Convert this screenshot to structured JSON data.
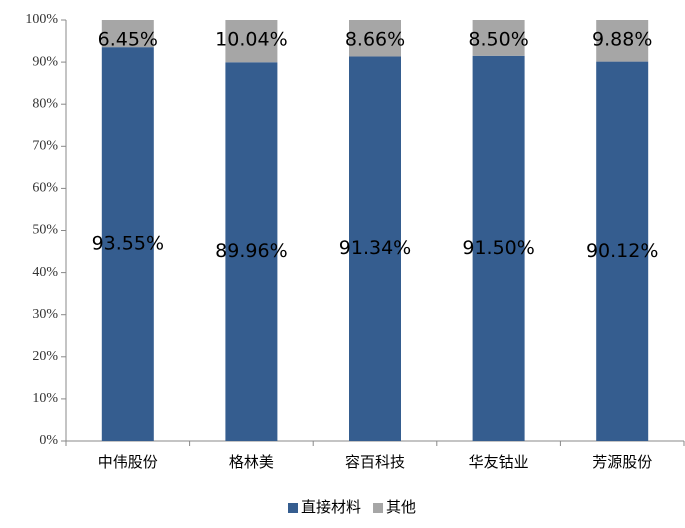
{
  "chart_data": {
    "type": "stacked_bar",
    "categories": [
      "中伟股份",
      "格林美",
      "容百科技",
      "华友钴业",
      "芳源股份"
    ],
    "series": [
      {
        "name": "直接材料",
        "color": "#355d8f",
        "values": [
          93.55,
          89.96,
          91.34,
          91.5,
          90.12
        ],
        "value_labels": [
          "93.55%",
          "89.96%",
          "91.34%",
          "91.50%",
          "90.12%"
        ]
      },
      {
        "name": "其他",
        "color": "#a6a6a6",
        "values": [
          6.45,
          10.04,
          8.66,
          8.5,
          9.88
        ],
        "value_labels": [
          "6.45%",
          "10.04%",
          "8.66%",
          "8.50%",
          "9.88%"
        ]
      }
    ],
    "ylim": [
      0,
      100
    ],
    "yticks": [
      {
        "value": 0,
        "label": "0%"
      },
      {
        "value": 10,
        "label": "10%"
      },
      {
        "value": 20,
        "label": "20%"
      },
      {
        "value": 30,
        "label": "30%"
      },
      {
        "value": 40,
        "label": "40%"
      },
      {
        "value": 50,
        "label": "50%"
      },
      {
        "value": 60,
        "label": "60%"
      },
      {
        "value": 70,
        "label": "70%"
      },
      {
        "value": 80,
        "label": "80%"
      },
      {
        "value": 90,
        "label": "90%"
      },
      {
        "value": 100,
        "label": "100%"
      }
    ],
    "legend": "bottom"
  }
}
